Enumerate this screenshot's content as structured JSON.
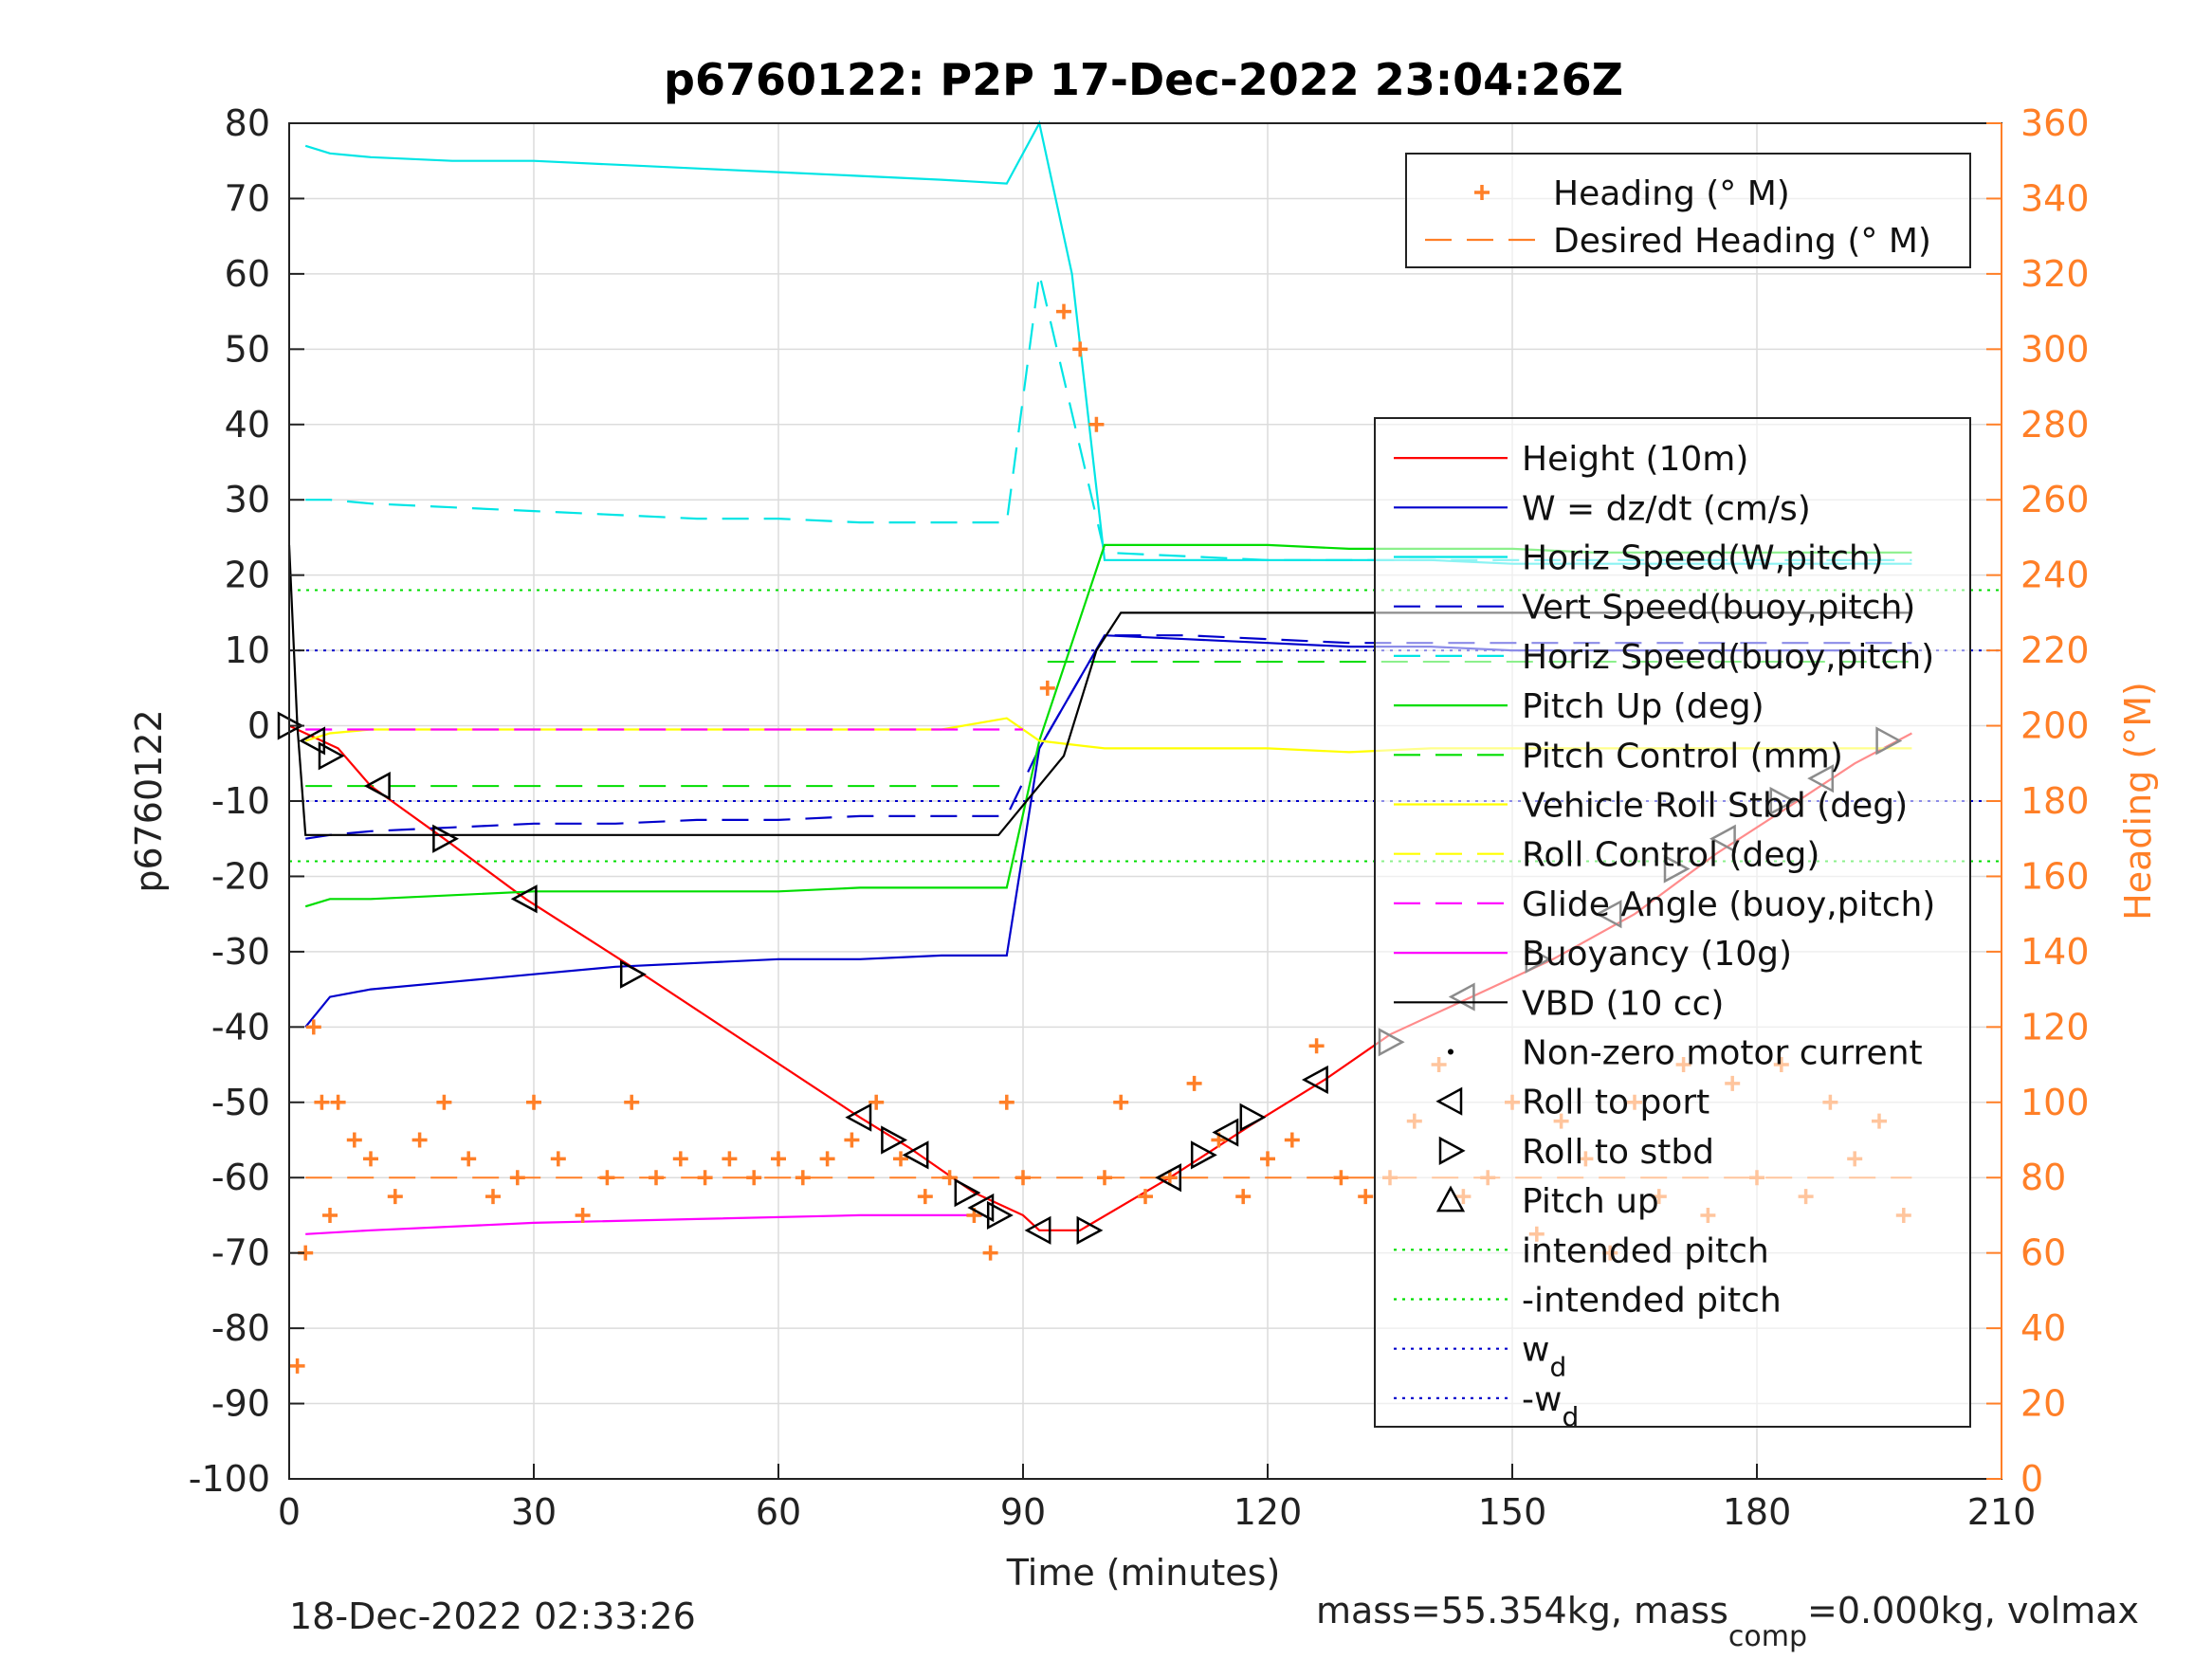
{
  "chart_data": {
    "type": "line",
    "title": "p6760122: P2P 17-Dec-2022 23:04:26Z",
    "xlabel": "Time (minutes)",
    "ylabel_left": "p6760122",
    "ylabel_right": "Heading (°M)",
    "xlim": [
      0,
      210
    ],
    "ylim_left": [
      -100,
      80
    ],
    "ylim_right": [
      0,
      360
    ],
    "xticks": [
      "0",
      "30",
      "60",
      "90",
      "120",
      "150",
      "180",
      "210"
    ],
    "yticks_left": [
      "80",
      "70",
      "60",
      "50",
      "40",
      "30",
      "20",
      "10",
      "0",
      "-10",
      "-20",
      "-30",
      "-40",
      "-50",
      "-60",
      "-70",
      "-80",
      "-90",
      "-100"
    ],
    "yticks_right": [
      "360",
      "340",
      "320",
      "300",
      "280",
      "260",
      "240",
      "220",
      "200",
      "180",
      "160",
      "140",
      "120",
      "100",
      "80",
      "60",
      "40",
      "20",
      "0"
    ],
    "grid": true,
    "footer_left": "18-Dec-2022 02:33:26",
    "footer_right": {
      "prefix": "mass=55.354kg, mass",
      "sub": "comp",
      "suffix": "=0.000kg, volmax"
    },
    "legend_right_axis": {
      "placement": "top-right",
      "entries": [
        {
          "label": "Heading (° M)",
          "color": "#ff7f27",
          "style": "plus"
        },
        {
          "label": "Desired Heading (° M)",
          "color": "#ff7f27",
          "style": "dash"
        }
      ]
    },
    "legend_left_axis": {
      "placement": "right",
      "entries": [
        {
          "label": "Height (10m)",
          "color": "#ff0000",
          "style": "solid"
        },
        {
          "label": "W = dz/dt (cm/s)",
          "color": "#0000cc",
          "style": "solid"
        },
        {
          "label": "Horiz Speed(W,pitch)",
          "color": "#00e5e5",
          "style": "solid"
        },
        {
          "label": "Vert Speed(buoy,pitch)",
          "color": "#0000cc",
          "style": "dash"
        },
        {
          "label": "Horiz Speed(buoy,pitch)",
          "color": "#00e5e5",
          "style": "dash"
        },
        {
          "label": "Pitch Up (deg)",
          "color": "#00dd00",
          "style": "solid"
        },
        {
          "label": "Pitch Control (mm)",
          "color": "#00dd00",
          "style": "dash"
        },
        {
          "label": "Vehicle Roll Stbd (deg)",
          "color": "#ffff00",
          "style": "solid"
        },
        {
          "label": "Roll Control (deg)",
          "color": "#ffff00",
          "style": "dash"
        },
        {
          "label": "Glide Angle (buoy,pitch)",
          "color": "#ff00ff",
          "style": "dash"
        },
        {
          "label": "Buoyancy (10g)",
          "color": "#ff00ff",
          "style": "solid"
        },
        {
          "label": "VBD (10 cc)",
          "color": "#000000",
          "style": "solid"
        },
        {
          "label": "Non-zero motor current",
          "color": "#000000",
          "style": "dot"
        },
        {
          "label": "Roll to port",
          "color": "#000000",
          "style": "tri-left"
        },
        {
          "label": "Roll to stbd",
          "color": "#000000",
          "style": "tri-right"
        },
        {
          "label": "Pitch up",
          "color": "#000000",
          "style": "tri-up"
        },
        {
          "label": "intended pitch",
          "color": "#00dd00",
          "style": "dotted"
        },
        {
          "label": "-intended pitch",
          "color": "#00dd00",
          "style": "dotted"
        },
        {
          "label": "w",
          "sub": "d",
          "color": "#0000cc",
          "style": "dotted"
        },
        {
          "label": "-w",
          "sub": "d",
          "color": "#0000cc",
          "style": "dotted"
        }
      ]
    },
    "reference_lines": {
      "intended_pitch": 18,
      "minus_intended_pitch": -18,
      "w_d": 10,
      "minus_w_d": -10,
      "desired_heading": 80,
      "pitch_control_dive": -8,
      "pitch_control_climb": 8.5
    },
    "series": [
      {
        "name": "Height (10m)",
        "x": [
          0,
          3,
          6,
          10,
          19,
          29,
          42,
          70,
          76,
          84,
          90,
          92,
          97,
          108,
          118,
          127,
          135,
          145,
          155,
          165,
          175,
          185,
          192,
          199
        ],
        "y": [
          0,
          -1.5,
          -3,
          -8,
          -15,
          -23,
          -32,
          -52,
          -56,
          -62,
          -65,
          -67,
          -67,
          -60,
          -53,
          -47,
          -41,
          -36,
          -31,
          -25,
          -17,
          -10,
          -5,
          -1
        ]
      },
      {
        "name": "W = dz/dt (cm/s)",
        "x": [
          2,
          5,
          10,
          20,
          30,
          40,
          50,
          60,
          70,
          80,
          88,
          92,
          100,
          110,
          120,
          130,
          140,
          150,
          160,
          170,
          180,
          190,
          199
        ],
        "y": [
          -40,
          -36,
          -35,
          -34,
          -33,
          -32,
          -31.5,
          -31,
          -31,
          -30.5,
          -30.5,
          -3,
          12,
          11.5,
          11,
          10.5,
          10.5,
          10,
          10,
          10,
          10,
          10,
          10
        ]
      },
      {
        "name": "Vert Speed(buoy,pitch)",
        "x": [
          2,
          5,
          10,
          20,
          30,
          40,
          50,
          60,
          70,
          80,
          88,
          92,
          100,
          110,
          120,
          130,
          140,
          150,
          160,
          170,
          180,
          190,
          199
        ],
        "y": [
          -15,
          -14.5,
          -14,
          -13.5,
          -13,
          -13,
          -12.5,
          -12.5,
          -12,
          -12,
          -12,
          -3,
          12,
          12,
          11.5,
          11,
          11,
          11,
          11,
          11,
          11,
          11,
          11
        ]
      },
      {
        "name": "Horiz Speed(W,pitch)",
        "x": [
          2,
          5,
          10,
          20,
          30,
          40,
          50,
          60,
          70,
          80,
          88,
          92,
          96,
          100,
          110,
          120,
          130,
          140,
          150,
          160,
          170,
          180,
          190,
          199
        ],
        "y": [
          77,
          76,
          75.5,
          75,
          75,
          74.5,
          74,
          73.5,
          73,
          72.5,
          72,
          80,
          60,
          22,
          22,
          22,
          22,
          22,
          21.5,
          21.5,
          21.5,
          21.5,
          21.5,
          21.5
        ]
      },
      {
        "name": "Horiz Speed(buoy,pitch)",
        "x": [
          2,
          5,
          10,
          20,
          30,
          40,
          50,
          60,
          70,
          80,
          88,
          92,
          100,
          110,
          120,
          130,
          140,
          150,
          160,
          170,
          180,
          190,
          199
        ],
        "y": [
          30,
          30,
          29.5,
          29,
          28.5,
          28,
          27.5,
          27.5,
          27,
          27,
          27,
          60,
          23,
          22.5,
          22,
          22,
          22,
          22,
          22,
          22,
          22,
          22,
          22
        ]
      },
      {
        "name": "Pitch Up (deg)",
        "x": [
          2,
          5,
          10,
          20,
          30,
          40,
          50,
          60,
          70,
          80,
          88,
          92,
          100,
          110,
          120,
          130,
          140,
          150,
          160,
          170,
          180,
          190,
          199
        ],
        "y": [
          -24,
          -23,
          -23,
          -22.5,
          -22,
          -22,
          -22,
          -22,
          -21.5,
          -21.5,
          -21.5,
          -2,
          24,
          24,
          24,
          23.5,
          23.5,
          23.5,
          23,
          23,
          23,
          23,
          23
        ]
      },
      {
        "name": "Vehicle Roll Stbd (deg)",
        "x": [
          2,
          5,
          10,
          20,
          30,
          40,
          50,
          60,
          70,
          80,
          88,
          92,
          100,
          110,
          120,
          130,
          140,
          150,
          160,
          170,
          180,
          190,
          199
        ],
        "y": [
          -2,
          -1,
          -0.5,
          -0.5,
          -0.5,
          -0.5,
          -0.5,
          -0.5,
          -0.5,
          -0.5,
          1,
          -2,
          -3,
          -3,
          -3,
          -3.5,
          -3,
          -3,
          -3,
          -3,
          -3,
          -3,
          -3
        ]
      },
      {
        "name": "Glide Angle (buoy,pitch)",
        "x": [
          2,
          90
        ],
        "y": [
          -0.5,
          -0.5
        ]
      },
      {
        "name": "Buoyancy (10g)",
        "x": [
          2,
          10,
          30,
          50,
          70,
          85
        ],
        "y": [
          -67.5,
          -67,
          -66,
          -65.5,
          -65,
          -65
        ]
      },
      {
        "name": "VBD (10 cc)",
        "x": [
          0,
          1,
          2,
          87,
          95,
          99,
          102,
          150,
          199
        ],
        "y": [
          24,
          0,
          -14.5,
          -14.5,
          -4,
          10,
          15,
          15,
          15
        ]
      },
      {
        "name": "Heading (° M)",
        "axis": "right",
        "x": [
          1,
          2,
          3,
          4,
          5,
          6,
          8,
          10,
          13,
          16,
          19,
          22,
          25,
          28,
          30,
          33,
          36,
          39,
          42,
          45,
          48,
          51,
          54,
          57,
          60,
          63,
          66,
          69,
          72,
          75,
          78,
          81,
          84,
          86,
          88,
          90,
          93,
          95,
          97,
          99,
          100,
          102,
          105,
          108,
          111,
          114,
          117,
          120,
          123,
          126,
          129,
          132,
          135,
          138,
          141,
          144,
          147,
          150,
          153,
          156,
          159,
          162,
          165,
          168,
          171,
          174,
          177,
          180,
          183,
          186,
          189,
          192,
          195,
          198
        ],
        "y": [
          30,
          60,
          120,
          100,
          70,
          100,
          90,
          85,
          75,
          90,
          100,
          85,
          75,
          80,
          100,
          85,
          70,
          80,
          100,
          80,
          85,
          80,
          85,
          80,
          85,
          80,
          85,
          90,
          100,
          85,
          75,
          80,
          70,
          60,
          100,
          80,
          210,
          310,
          300,
          280,
          80,
          100,
          75,
          80,
          105,
          90,
          75,
          85,
          90,
          115,
          80,
          75,
          80,
          95,
          110,
          75,
          80,
          100,
          65,
          95,
          85,
          60,
          100,
          75,
          110,
          70,
          105,
          80,
          110,
          75,
          100,
          85,
          95,
          70
        ]
      }
    ],
    "pitch_markers": {
      "x": [
        0,
        3,
        5,
        11,
        19,
        29,
        42,
        70,
        74,
        77,
        83,
        85,
        87,
        92,
        98,
        108,
        112,
        115,
        118,
        126,
        135,
        144,
        153,
        162,
        170,
        176,
        183,
        188,
        196
      ],
      "y": [
        0,
        -2,
        -4,
        -8,
        -15,
        -23,
        -33,
        -52,
        -55,
        -57,
        -62,
        -64,
        -65,
        -67,
        -67,
        -60,
        -57,
        -54,
        -52,
        -47,
        -42,
        -36,
        -31,
        -25,
        -19,
        -15,
        -10,
        -7,
        -2
      ]
    }
  }
}
